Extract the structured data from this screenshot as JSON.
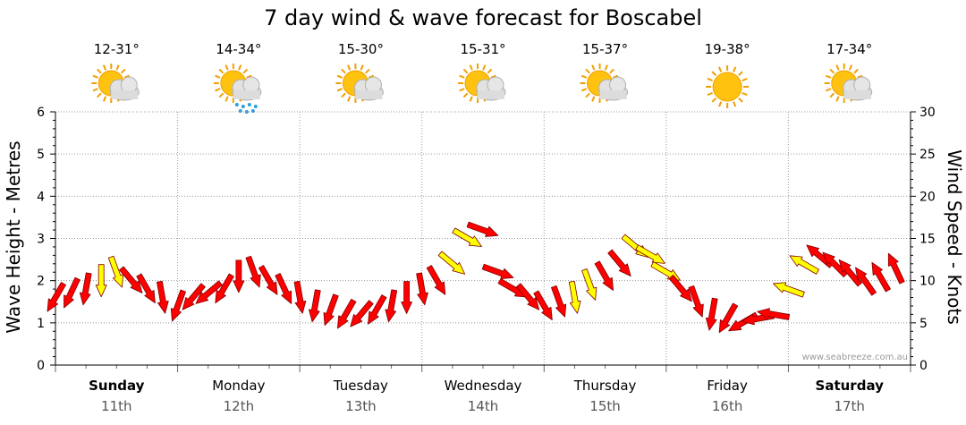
{
  "chart_data": {
    "type": "line",
    "title": "7 day wind & wave forecast for Boscabel",
    "ylabel_left": "Wave Height - Metres",
    "ylabel_right": "Wind Speed - Knots",
    "ylim_left": [
      0,
      6
    ],
    "ylim_right": [
      0,
      30
    ],
    "yticks_left": [
      "0",
      "1",
      "2",
      "3",
      "4",
      "5",
      "6"
    ],
    "yticks_right": [
      "0",
      "5",
      "10",
      "15",
      "20",
      "25",
      "30"
    ],
    "credit": "www.seabreeze.com.au",
    "days": [
      {
        "name": "Sunday",
        "date": "11th",
        "temp": "12-31°",
        "icon": "partly-cloudy-icon",
        "bold": true
      },
      {
        "name": "Monday",
        "date": "12th",
        "temp": "14-34°",
        "icon": "rain-showers-icon",
        "bold": false
      },
      {
        "name": "Tuesday",
        "date": "13th",
        "temp": "15-30°",
        "icon": "partly-cloudy-icon",
        "bold": false
      },
      {
        "name": "Wednesday",
        "date": "14th",
        "temp": "15-31°",
        "icon": "partly-cloudy-icon",
        "bold": false
      },
      {
        "name": "Thursday",
        "date": "15th",
        "temp": "15-37°",
        "icon": "partly-cloudy-icon",
        "bold": false
      },
      {
        "name": "Friday",
        "date": "16th",
        "temp": "19-38°",
        "icon": "sunny-icon",
        "bold": false
      },
      {
        "name": "Saturday",
        "date": "17th",
        "temp": "17-34°",
        "icon": "partly-cloudy-icon",
        "bold": true
      }
    ],
    "series": [
      {
        "name": "",
        "unit": "knots",
        "hours": [
          0,
          3,
          6,
          9,
          12,
          15,
          18,
          21,
          24,
          27,
          30,
          33,
          36,
          39,
          42,
          45,
          48,
          51,
          54,
          57,
          60,
          63,
          66,
          69,
          72,
          75,
          78,
          81,
          84,
          87,
          90,
          93,
          96,
          99,
          102,
          105,
          108,
          111,
          114,
          117,
          120,
          123,
          126,
          129,
          132,
          135,
          138,
          141,
          144,
          147,
          150,
          153,
          156,
          159,
          162,
          165
        ],
        "speeds": [
          8,
          8.5,
          9,
          10,
          11,
          10,
          9,
          8,
          7,
          8,
          8.5,
          9,
          10.5,
          11,
          10,
          9,
          8,
          7,
          6.5,
          6,
          6,
          6.5,
          7,
          8,
          9,
          10,
          12,
          15,
          16,
          11,
          9,
          8,
          7,
          7.5,
          8,
          9.5,
          10.5,
          12,
          14,
          13,
          11,
          9,
          7.5,
          6,
          5.5,
          5,
          5.5,
          6,
          9,
          12,
          13,
          12,
          11,
          10,
          10.5,
          11.5
        ],
        "directions": [
          120,
          115,
          100,
          90,
          70,
          50,
          60,
          80,
          110,
          130,
          140,
          120,
          90,
          70,
          60,
          65,
          80,
          100,
          110,
          120,
          130,
          120,
          100,
          90,
          80,
          60,
          40,
          30,
          20,
          20,
          30,
          50,
          60,
          70,
          80,
          70,
          60,
          50,
          40,
          30,
          30,
          50,
          70,
          100,
          120,
          150,
          170,
          190,
          200,
          210,
          220,
          225,
          230,
          235,
          240,
          245
        ],
        "strength": [
          "strong",
          "strong",
          "strong",
          "light",
          "light",
          "strong",
          "strong",
          "strong",
          "strong",
          "strong",
          "strong",
          "strong",
          "strong",
          "strong",
          "strong",
          "strong",
          "strong",
          "strong",
          "strong",
          "strong",
          "strong",
          "strong",
          "strong",
          "strong",
          "strong",
          "strong",
          "light",
          "light",
          "strong",
          "strong",
          "strong",
          "strong",
          "strong",
          "strong",
          "light",
          "light",
          "strong",
          "strong",
          "light",
          "light",
          "light",
          "strong",
          "strong",
          "strong",
          "strong",
          "strong",
          "strong",
          "strong",
          "light",
          "light",
          "strong",
          "strong",
          "strong",
          "strong",
          "strong",
          "strong"
        ]
      }
    ],
    "colors": {
      "strong": "#ff0000",
      "light": "#ffff00",
      "outline": "#800000",
      "grid": "#999999"
    }
  }
}
